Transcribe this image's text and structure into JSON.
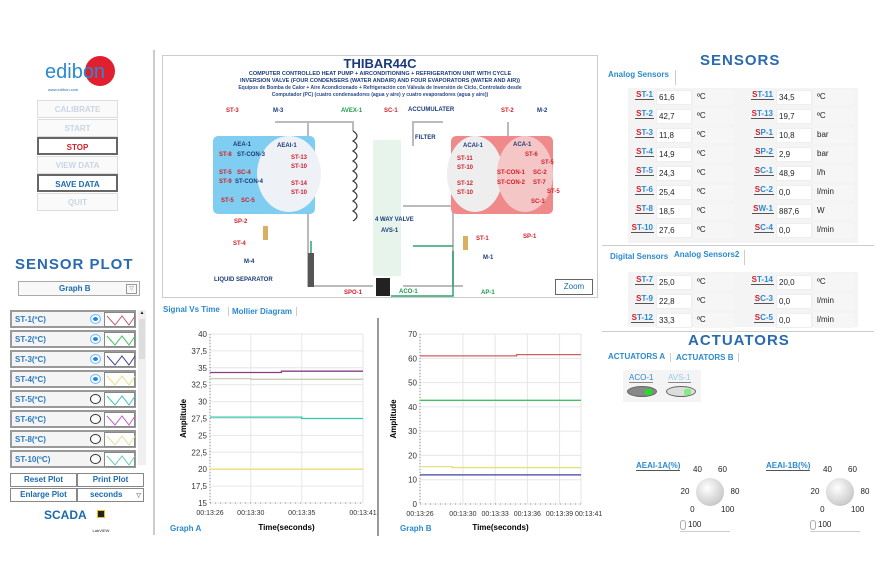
{
  "left": {
    "logo": "edibon",
    "logo_url": "www.edibon.com",
    "buttons": [
      {
        "label": "CALIBRATE",
        "enabled": false
      },
      {
        "label": "START",
        "enabled": false
      },
      {
        "label": "STOP",
        "enabled": true,
        "color": "#d0202a"
      },
      {
        "label": "VIEW DATA",
        "enabled": false
      },
      {
        "label": "SAVE DATA",
        "enabled": true,
        "color": "#1a6ab0"
      },
      {
        "label": "QUIT",
        "enabled": false
      }
    ],
    "sensor_plot_title": "SENSOR PLOT",
    "graph_select": "Graph B",
    "plot_items": [
      {
        "label": "ST-1(ºC)",
        "visible": true,
        "color": "#c06070"
      },
      {
        "label": "ST-2(ºC)",
        "visible": true,
        "color": "#40c060"
      },
      {
        "label": "ST-3(ºC)",
        "visible": true,
        "color": "#404090"
      },
      {
        "label": "ST-4(ºC)",
        "visible": true,
        "color": "#e8e080"
      },
      {
        "label": "ST-5(ºC)",
        "visible": false,
        "color": "#40c0c0"
      },
      {
        "label": "ST-6(ºC)",
        "visible": false,
        "color": "#c060c0"
      },
      {
        "label": "ST-8(ºC)",
        "visible": false,
        "color": "#e0e0a0"
      },
      {
        "label": "ST-10(ºC)",
        "visible": false,
        "color": "#60d0c0"
      }
    ],
    "reset_plot": "Reset Plot",
    "print_plot": "Print Plot",
    "enlarge_plot": "Enlarge Plot",
    "time_unit": "seconds",
    "scada_logo": "SCADA",
    "labview": "LabVIEW"
  },
  "diagram": {
    "title": "THIBAR44C",
    "subtitle1": "COMPUTER CONTROLLED HEAT PUMP + AIRCONDITIONING + REFRIGERATION UNIT WITH CYCLE",
    "subtitle2": "INVERSION VALVE (FOUR CONDENSERS (WATER ANDAIR) AND FOUR EVAPORATORS (WATER AND AIR))",
    "subtitle3": "Equipos de Bomba de Calor + Aire Acondicionado + Refrigeración con Válvula de Inversión de Ciclo, Controlado desde",
    "subtitle4": "Computador (PC) (cuatro condensadores (agua y aire) y cuatro evaporadores (agua y aire))",
    "labels": [
      "ST-3",
      "M-3",
      "AVEX-1",
      "SC-1",
      "ACCUMULATER",
      "ST-2",
      "M-2",
      "AEA-1",
      "ST-8",
      "ST-CON-3",
      "ST-5",
      "SC-4",
      "ST-9",
      "ST-CON-4",
      "ST-5",
      "SC-5",
      "AEAI-1",
      "ST-13",
      "ST-10",
      "ST-14",
      "ST-10",
      "FILTER",
      "ACAI-1",
      "ST-11",
      "ST-10",
      "ST-12",
      "ST-10",
      "ACA-1",
      "ST-6",
      "ST-5",
      "ST-CON-1",
      "SC-2",
      "ST-CON-2",
      "ST-7",
      "ST-5",
      "SC-3",
      "SP-2",
      "ST-4",
      "M-4",
      "4 WAY VALVE",
      "AVS-1",
      "ST-1",
      "SP-1",
      "M-1",
      "LIQUID SEPARATOR",
      "SPO-1",
      "ACO-1",
      "AP-1"
    ],
    "zoom": "Zoom"
  },
  "graphs": {
    "tabs": [
      "Signal Vs Time",
      "Mollier Diagram"
    ],
    "active_tab": 0
  },
  "chart_data": [
    {
      "type": "line",
      "name": "Graph A",
      "xlabel": "Time(seconds)",
      "ylabel": "Amplitude",
      "ylim": [
        15,
        40
      ],
      "yticks": [
        "15",
        "17,5",
        "20",
        "22,5",
        "25",
        "27,5",
        "30",
        "32,5",
        "35",
        "37,5",
        "40"
      ],
      "xticks": [
        "00:13:26",
        "00:13:30",
        "00:13:35",
        "00:13:41"
      ],
      "grid": true,
      "series": [
        {
          "color": "#8a3a8a",
          "points": [
            [
              "00:13:26",
              34.3
            ],
            [
              "00:13:33",
              34.3
            ],
            [
              "00:13:33",
              34.5
            ],
            [
              "00:13:41",
              34.5
            ]
          ]
        },
        {
          "color": "#c8c8b8",
          "points": [
            [
              "00:13:26",
              33.4
            ],
            [
              "00:13:30",
              33.4
            ],
            [
              "00:13:30",
              33.3
            ],
            [
              "00:13:41",
              33.3
            ]
          ]
        },
        {
          "color": "#30c8a8",
          "points": [
            [
              "00:13:26",
              27.7
            ],
            [
              "00:13:35",
              27.7
            ],
            [
              "00:13:35",
              27.5
            ],
            [
              "00:13:41",
              27.5
            ]
          ]
        },
        {
          "color": "#e8e070",
          "points": [
            [
              "00:13:26",
              20.0
            ],
            [
              "00:13:41",
              20.0
            ]
          ]
        }
      ]
    },
    {
      "type": "line",
      "name": "Graph B",
      "xlabel": "Time(seconds)",
      "ylabel": "Amplitude",
      "ylim": [
        0,
        70
      ],
      "yticks": [
        "0",
        "10",
        "20",
        "30",
        "40",
        "50",
        "60",
        "70"
      ],
      "xticks": [
        "00:13:26",
        "00:13:30",
        "00:13:33",
        "00:13:36",
        "00:13:39",
        "00:13:41"
      ],
      "grid": true,
      "series": [
        {
          "color": "#d06060",
          "points": [
            [
              "00:13:26",
              61.0
            ],
            [
              "00:13:35",
              61.0
            ],
            [
              "00:13:35",
              61.5
            ],
            [
              "00:13:41",
              61.5
            ]
          ]
        },
        {
          "color": "#40c060",
          "points": [
            [
              "00:13:26",
              42.7
            ],
            [
              "00:13:41",
              42.7
            ]
          ]
        },
        {
          "color": "#e8e080",
          "points": [
            [
              "00:13:26",
              15.4
            ],
            [
              "00:13:29",
              15.4
            ],
            [
              "00:13:29",
              15.0
            ],
            [
              "00:13:41",
              15.0
            ]
          ]
        },
        {
          "color": "#4040a0",
          "points": [
            [
              "00:13:26",
              12.0
            ],
            [
              "00:13:41",
              12.0
            ]
          ]
        }
      ]
    }
  ],
  "sensors": {
    "title": "SENSORS",
    "tab1": "Analog Sensors",
    "analog": [
      {
        "name": "ST-1",
        "value": "61,6",
        "unit": "ºC"
      },
      {
        "name": "ST-11",
        "value": "34,5",
        "unit": "ºC"
      },
      {
        "name": "ST-2",
        "value": "42,7",
        "unit": "ºC"
      },
      {
        "name": "ST-13",
        "value": "19,7",
        "unit": "ºC"
      },
      {
        "name": "ST-3",
        "value": "11,8",
        "unit": "ºC"
      },
      {
        "name": "SP-1",
        "value": "10,8",
        "unit": "bar"
      },
      {
        "name": "ST-4",
        "value": "14,9",
        "unit": "ºC"
      },
      {
        "name": "SP-2",
        "value": "2,9",
        "unit": "bar"
      },
      {
        "name": "ST-5",
        "value": "24,3",
        "unit": "ºC"
      },
      {
        "name": "SC-1",
        "value": "48,9",
        "unit": "l/h"
      },
      {
        "name": "ST-6",
        "value": "25,4",
        "unit": "ºC"
      },
      {
        "name": "SC-2",
        "value": "0,0",
        "unit": "l/min"
      },
      {
        "name": "ST-8",
        "value": "18,5",
        "unit": "ºC"
      },
      {
        "name": "SW-1",
        "value": "887,6",
        "unit": "W"
      },
      {
        "name": "ST-10",
        "value": "27,6",
        "unit": "ºC"
      },
      {
        "name": "SC-4",
        "value": "0,0",
        "unit": "l/min"
      }
    ],
    "tab2": "Digital Sensors",
    "tab3": "Analog Sensors2",
    "analog2": [
      {
        "name": "ST-7",
        "value": "25,0",
        "unit": "ºC"
      },
      {
        "name": "ST-14",
        "value": "20,0",
        "unit": "ºC"
      },
      {
        "name": "ST-9",
        "value": "22,8",
        "unit": "ºC"
      },
      {
        "name": "SC-3",
        "value": "0,0",
        "unit": "l/min"
      },
      {
        "name": "ST-12",
        "value": "33,3",
        "unit": "ºC"
      },
      {
        "name": "SC-5",
        "value": "0,0",
        "unit": "l/min"
      }
    ]
  },
  "actuators": {
    "title": "ACTUATORS",
    "tab_a": "ACTUATORS A",
    "tab_b": "ACTUATORS B",
    "switches": [
      {
        "name": "ACO-1",
        "on": true
      },
      {
        "name": "AVS-1",
        "on": false
      }
    ],
    "knobs": [
      {
        "name": "AEAI-1A(%)",
        "value": "100"
      },
      {
        "name": "AEAI-1B(%)",
        "value": "100"
      }
    ],
    "knob_ticks": [
      "0",
      "20",
      "40",
      "60",
      "80",
      "100"
    ]
  }
}
